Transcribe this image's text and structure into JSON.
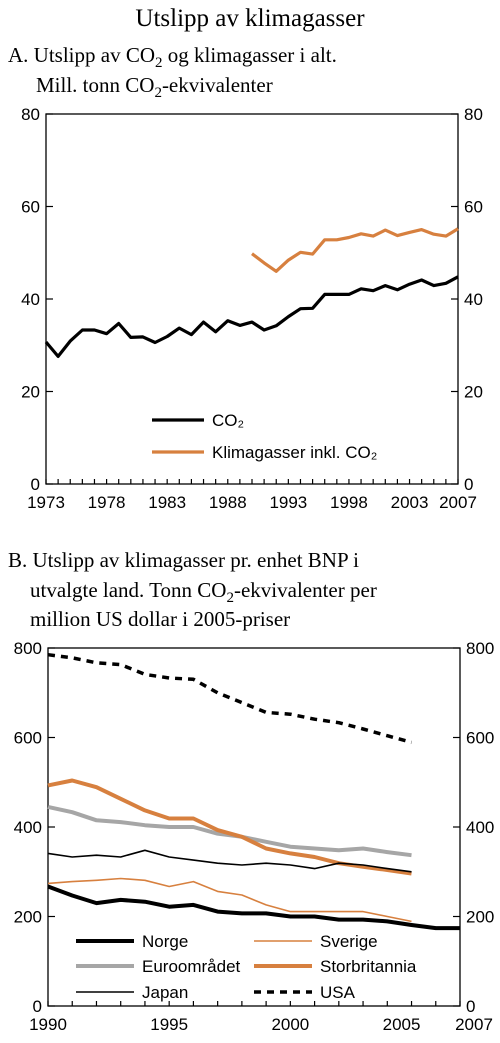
{
  "title": "Utslipp av klimagasser",
  "chart_data": [
    {
      "type": "line",
      "panel_title": {
        "line1_prefix": "A. Utslipp av CO",
        "line1_sub": "2",
        "line1_suffix": " og klimagasser i alt.",
        "line2_prefix": "Mill. tonn CO",
        "line2_sub": "2",
        "line2_suffix": "-ekvivalenter"
      },
      "xlim": [
        1973,
        2007
      ],
      "ylim": [
        0,
        80
      ],
      "x_ticks": [
        "1973",
        "1978",
        "1983",
        "1988",
        "1993",
        "1998",
        "2003",
        "2007"
      ],
      "x_tick_values": [
        1973,
        1978,
        1983,
        1988,
        1993,
        1998,
        2003,
        2007
      ],
      "y_ticks": [
        "0",
        "20",
        "40",
        "60",
        "80"
      ],
      "y_tick_values": [
        0,
        20,
        40,
        60,
        80
      ],
      "legend_position": "lower-left",
      "series": [
        {
          "name": "CO₂",
          "color": "#000000",
          "x": [
            1973,
            1974,
            1975,
            1976,
            1977,
            1978,
            1979,
            1980,
            1981,
            1982,
            1983,
            1984,
            1985,
            1986,
            1987,
            1988,
            1989,
            1990,
            1991,
            1992,
            1993,
            1994,
            1995,
            1996,
            1997,
            1998,
            1999,
            2000,
            2001,
            2002,
            2003,
            2004,
            2005,
            2006,
            2007
          ],
          "y": [
            30.7,
            27.6,
            30.9,
            33.3,
            33.3,
            32.5,
            34.7,
            31.7,
            31.8,
            30.6,
            31.9,
            33.7,
            32.3,
            35.0,
            32.9,
            35.3,
            34.3,
            35.0,
            33.3,
            34.2,
            36.2,
            37.9,
            38.0,
            41.0,
            41.0,
            41.0,
            42.2,
            41.8,
            42.9,
            42.0,
            43.2,
            44.1,
            42.9,
            43.4,
            44.8
          ]
        },
        {
          "name": "Klimagasser inkl. CO₂",
          "color": "#d7803f",
          "x": [
            1990,
            1991,
            1992,
            1993,
            1994,
            1995,
            1996,
            1997,
            1998,
            1999,
            2000,
            2001,
            2002,
            2003,
            2004,
            2005,
            2006,
            2007
          ],
          "y": [
            49.8,
            47.8,
            46.0,
            48.4,
            50.1,
            49.7,
            52.8,
            52.8,
            53.3,
            54.1,
            53.6,
            54.9,
            53.7,
            54.4,
            55.0,
            54.0,
            53.6,
            55.2
          ]
        }
      ]
    },
    {
      "type": "line",
      "panel_title": {
        "line1": "B. Utslipp av klimagasser pr. enhet BNP i",
        "line2_prefix": "utvalgte land. Tonn CO",
        "line2_sub": "2",
        "line2_suffix": "-ekvivalenter per",
        "line3": "million US dollar i 2005-priser"
      },
      "xlim": [
        1990,
        2007
      ],
      "ylim": [
        0,
        800
      ],
      "x_ticks": [
        "1990",
        "1995",
        "2000",
        "2005",
        "2007"
      ],
      "x_tick_values": [
        1990,
        1995,
        2000,
        2005,
        2007
      ],
      "y_ticks": [
        "0",
        "200",
        "400",
        "600",
        "800"
      ],
      "y_tick_values": [
        0,
        200,
        400,
        600,
        800
      ],
      "legend_position": "bottom",
      "series": [
        {
          "name": "Norge",
          "color": "#000000",
          "style": "thick",
          "x": [
            1990,
            1991,
            1992,
            1993,
            1994,
            1995,
            1996,
            1997,
            1998,
            1999,
            2000,
            2001,
            2002,
            2003,
            2004,
            2005,
            2006,
            2007
          ],
          "y": [
            267,
            247,
            230,
            237,
            233,
            222,
            226,
            211,
            207,
            207,
            200,
            200,
            193,
            193,
            189,
            181,
            174,
            174
          ]
        },
        {
          "name": "Sverige",
          "color": "#d7803f",
          "style": "thin",
          "x": [
            1990,
            1991,
            1992,
            1993,
            1994,
            1995,
            1996,
            1997,
            1998,
            1999,
            2000,
            2001,
            2002,
            2003,
            2004,
            2005
          ],
          "y": [
            274,
            278,
            281,
            285,
            281,
            267,
            278,
            256,
            248,
            226,
            211,
            211,
            211,
            211,
            200,
            189
          ]
        },
        {
          "name": "Euroområdet",
          "color": "#a6a6a6",
          "style": "thick",
          "x": [
            1990,
            1991,
            1992,
            1993,
            1994,
            1995,
            1996,
            1997,
            1998,
            1999,
            2000,
            2001,
            2002,
            2003,
            2004,
            2005
          ],
          "y": [
            445,
            433,
            415,
            411,
            404,
            400,
            400,
            385,
            378,
            367,
            356,
            352,
            348,
            352,
            344,
            337
          ]
        },
        {
          "name": "Storbritannia",
          "color": "#d7803f",
          "style": "thick",
          "x": [
            1990,
            1991,
            1992,
            1993,
            1994,
            1995,
            1996,
            1997,
            1998,
            1999,
            2000,
            2001,
            2002,
            2003,
            2004,
            2005
          ],
          "y": [
            493,
            504,
            489,
            463,
            437,
            419,
            419,
            393,
            378,
            352,
            341,
            333,
            319,
            311,
            304,
            296
          ]
        },
        {
          "name": "Japan",
          "color": "#000000",
          "style": "thin",
          "x": [
            1990,
            1991,
            1992,
            1993,
            1994,
            1995,
            1996,
            1997,
            1998,
            1999,
            2000,
            2001,
            2002,
            2003,
            2004,
            2005
          ],
          "y": [
            341,
            333,
            337,
            333,
            348,
            333,
            326,
            319,
            315,
            319,
            315,
            307,
            319,
            315,
            307,
            300
          ]
        },
        {
          "name": "USA",
          "color": "#000000",
          "style": "dashed",
          "x": [
            1990,
            1991,
            1992,
            1993,
            1994,
            1995,
            1996,
            1997,
            1998,
            1999,
            2000,
            2001,
            2002,
            2003,
            2004,
            2005
          ],
          "y": [
            785,
            778,
            767,
            763,
            741,
            733,
            730,
            700,
            678,
            656,
            652,
            641,
            633,
            619,
            604,
            589
          ]
        }
      ]
    }
  ]
}
